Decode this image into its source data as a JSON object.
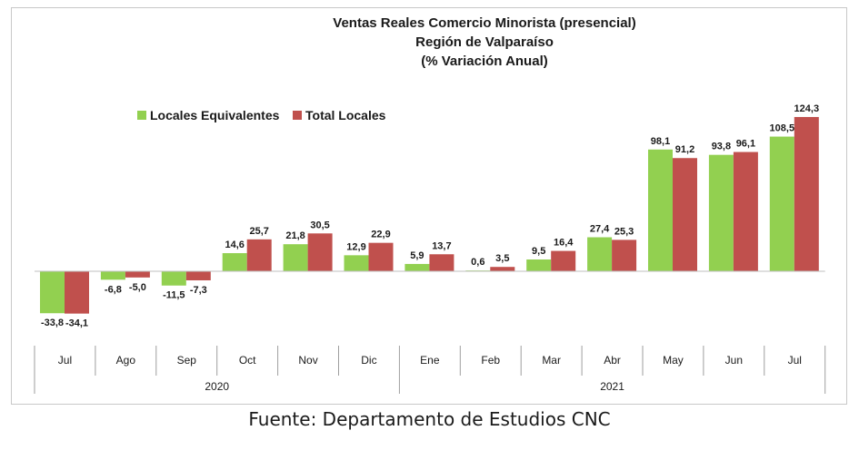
{
  "chart_data": {
    "type": "bar",
    "title": [
      "Ventas Reales Comercio Minorista (presencial)",
      "Región de Valparaíso",
      "(% Variación Anual)"
    ],
    "categories": [
      "Jul",
      "Ago",
      "Sep",
      "Oct",
      "Nov",
      "Dic",
      "Ene",
      "Feb",
      "Mar",
      "Abr",
      "May",
      "Jun",
      "Jul"
    ],
    "groups": [
      {
        "label": "2020",
        "categories": [
          "Jul",
          "Ago",
          "Sep",
          "Oct",
          "Nov",
          "Dic"
        ]
      },
      {
        "label": "2021",
        "categories": [
          "Ene",
          "Feb",
          "Mar",
          "Abr",
          "May",
          "Jun",
          "Jul"
        ]
      }
    ],
    "series": [
      {
        "name": "Locales Equivalentes",
        "color": "#92d050",
        "values": [
          -33.8,
          -6.8,
          -11.5,
          14.6,
          21.8,
          12.9,
          5.9,
          0.6,
          9.5,
          27.4,
          98.1,
          93.8,
          108.5
        ],
        "labels": [
          "-33,8",
          "-6,8",
          "-11,5",
          "14,6",
          "21,8",
          "12,9",
          "5,9",
          "0,6",
          "9,5",
          "27,4",
          "98,1",
          "93,8",
          "108,5"
        ]
      },
      {
        "name": "Total Locales",
        "color": "#c0504d",
        "values": [
          -34.1,
          -5.0,
          -7.3,
          25.7,
          30.5,
          22.9,
          13.7,
          3.5,
          16.4,
          25.3,
          91.2,
          96.1,
          124.3
        ],
        "labels": [
          "-34,1",
          "-5,0",
          "-7,3",
          "25,7",
          "30,5",
          "22,9",
          "13,7",
          "3,5",
          "16,4",
          "25,3",
          "91,2",
          "96,1",
          "124,3"
        ]
      }
    ],
    "legend_position": "top-left",
    "grid": false
  },
  "source_text": "Fuente: Departamento de Estudios CNC"
}
